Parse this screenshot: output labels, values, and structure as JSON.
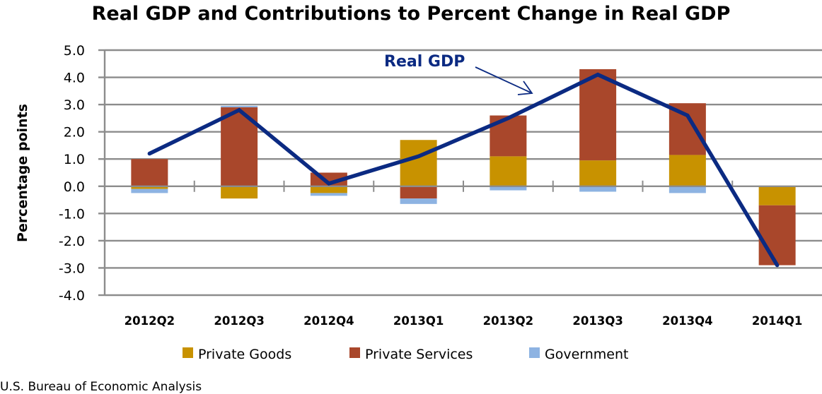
{
  "chart_data": {
    "type": "bar",
    "subtype": "stacked-bar-with-line",
    "title": "Real GDP and Contributions to Percent Change in Real GDP",
    "xlabel": "",
    "ylabel": "Percentage points",
    "ylim": [
      -4.0,
      5.0
    ],
    "yticks": [
      "5.0",
      "4.0",
      "3.0",
      "2.0",
      "1.0",
      "0.0",
      "-1.0",
      "-2.0",
      "-3.0",
      "-4.0"
    ],
    "ytick_values": [
      5,
      4,
      3,
      2,
      1,
      0,
      -1,
      -2,
      -3,
      -4
    ],
    "grid": true,
    "categories": [
      "2012Q2",
      "2012Q3",
      "2012Q4",
      "2013Q1",
      "2013Q2",
      "2013Q3",
      "2013Q4",
      "2014Q1"
    ],
    "series": [
      {
        "name": "Private Goods",
        "kind": "bar",
        "color": "#c89200",
        "values": [
          -0.1,
          -0.45,
          -0.25,
          1.7,
          1.1,
          0.95,
          1.15,
          -0.7
        ]
      },
      {
        "name": "Private Services",
        "kind": "bar",
        "color": "#a9472b",
        "values": [
          1.0,
          2.9,
          0.5,
          -0.45,
          1.5,
          3.35,
          1.9,
          -2.2
        ]
      },
      {
        "name": "Government",
        "kind": "bar",
        "color": "#8db3e2",
        "values": [
          -0.15,
          0.05,
          -0.1,
          -0.2,
          -0.15,
          -0.2,
          -0.25,
          0.0
        ]
      },
      {
        "name": "Real GDP",
        "kind": "line",
        "color": "#0b2a82",
        "values": [
          1.2,
          2.8,
          0.1,
          1.1,
          2.5,
          4.1,
          2.6,
          -2.9
        ]
      }
    ],
    "legend": {
      "placement": "bottom",
      "entries": [
        "Private Goods",
        "Private Services",
        "Government"
      ]
    },
    "annotations": [
      {
        "text": "Real GDP",
        "points_to": "Real GDP line"
      }
    ],
    "source": "U.S. Bureau of Economic Analysis"
  }
}
